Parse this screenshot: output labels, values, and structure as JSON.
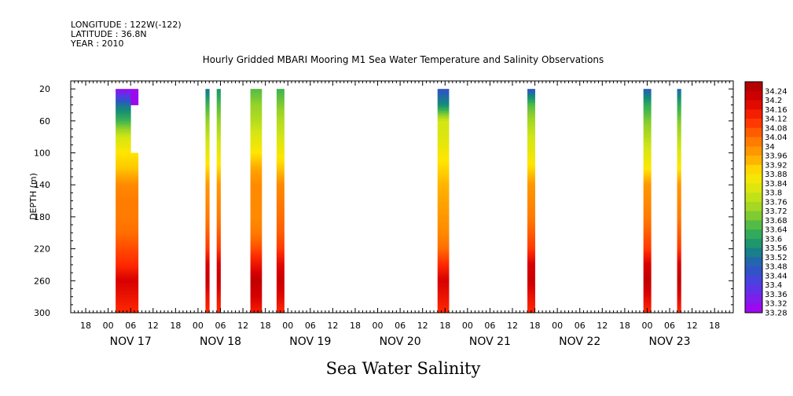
{
  "header": {
    "longitude": "LONGITUDE : 122W(-122)",
    "latitude": "LATITUDE : 36.8N",
    "year": "YEAR : 2010"
  },
  "chart_data": {
    "type": "heatmap",
    "title": "Hourly Gridded MBARI Mooring M1 Sea Water Temperature and Salinity Observations",
    "footer": "Sea Water Salinity",
    "ylabel": "DEPTH (m)",
    "xlabel": "",
    "y_reversed": true,
    "ylim": [
      300,
      10
    ],
    "y_ticks": [
      20,
      60,
      100,
      140,
      180,
      220,
      260,
      300
    ],
    "x_hour_start": -10,
    "x_hour_end": 167,
    "x_hour_labels": [
      "00",
      "06",
      "12",
      "18"
    ],
    "x_day_labels": [
      "NOV 17",
      "NOV 18",
      "NOV 19",
      "NOV 20",
      "NOV 21",
      "NOV 22",
      "NOV 23"
    ],
    "colorbar": {
      "levels": [
        "34.24",
        "34.2",
        "34.16",
        "34.12",
        "34.08",
        "34.04",
        "34",
        "33.96",
        "33.92",
        "33.88",
        "33.84",
        "33.8",
        "33.76",
        "33.72",
        "33.68",
        "33.64",
        "33.6",
        "33.56",
        "33.52",
        "33.48",
        "33.44",
        "33.4",
        "33.36",
        "33.32",
        "33.28"
      ],
      "min": 33.28,
      "max": 34.28,
      "step": 0.04
    },
    "profile_depths": [
      20,
      40,
      60,
      80,
      100,
      120,
      140,
      160,
      180,
      200,
      220,
      240,
      260,
      280,
      300
    ],
    "columns": [
      {
        "hour_start": 2,
        "hour_end": 4,
        "salinity": [
          33.3,
          33.52,
          33.64,
          33.8,
          33.88,
          33.92,
          34.0,
          34.02,
          34.02,
          34.04,
          34.08,
          34.12,
          34.2,
          34.16,
          34.12
        ]
      },
      {
        "hour_start": 4,
        "hour_end": 6,
        "salinity": [
          33.3,
          33.52,
          33.64,
          33.8,
          33.88,
          33.92,
          34.0,
          34.02,
          34.02,
          34.04,
          34.08,
          34.12,
          34.2,
          34.16,
          34.12
        ]
      },
      {
        "hour_start": 6,
        "hour_end": 8,
        "salinity": [
          33.3,
          null,
          null,
          null,
          33.88,
          33.92,
          34.0,
          34.02,
          34.02,
          34.04,
          34.08,
          34.12,
          34.2,
          34.16,
          34.12
        ]
      },
      {
        "hour_start": 26,
        "hour_end": 27,
        "salinity": [
          33.52,
          33.64,
          33.72,
          33.78,
          33.84,
          33.9,
          33.98,
          34.0,
          34.02,
          34.06,
          34.1,
          34.2,
          34.22,
          34.16,
          34.12
        ]
      },
      {
        "hour_start": 29,
        "hour_end": 30,
        "salinity": [
          33.58,
          33.66,
          33.72,
          33.78,
          33.84,
          33.9,
          33.98,
          34.0,
          34.02,
          34.06,
          34.1,
          34.2,
          34.22,
          34.16,
          34.12
        ]
      },
      {
        "hour_start": 38,
        "hour_end": 41,
        "salinity": [
          33.66,
          33.72,
          33.76,
          33.82,
          33.88,
          33.96,
          34.0,
          34.0,
          34.0,
          34.02,
          34.08,
          34.16,
          34.24,
          34.2,
          34.14
        ]
      },
      {
        "hour_start": 45,
        "hour_end": 47,
        "salinity": [
          33.64,
          33.7,
          33.76,
          33.8,
          33.86,
          33.92,
          34.0,
          34.02,
          34.04,
          34.06,
          34.1,
          34.18,
          34.22,
          34.18,
          34.12
        ]
      },
      {
        "hour_start": 88,
        "hour_end": 91,
        "salinity": [
          33.46,
          33.56,
          33.8,
          33.82,
          33.86,
          33.9,
          33.94,
          33.96,
          33.98,
          34.0,
          34.04,
          34.12,
          34.2,
          34.16,
          34.12
        ]
      },
      {
        "hour_start": 112,
        "hour_end": 114,
        "salinity": [
          33.46,
          33.66,
          33.74,
          33.8,
          33.84,
          33.9,
          33.98,
          34.0,
          34.02,
          34.06,
          34.1,
          34.2,
          34.22,
          34.16,
          34.12
        ]
      },
      {
        "hour_start": 143,
        "hour_end": 145,
        "salinity": [
          33.48,
          33.62,
          33.7,
          33.76,
          33.82,
          33.88,
          33.98,
          34.0,
          34.02,
          34.06,
          34.1,
          34.2,
          34.24,
          34.18,
          34.12
        ]
      },
      {
        "hour_start": 152,
        "hour_end": 153,
        "salinity": [
          33.5,
          33.62,
          33.7,
          33.76,
          33.82,
          33.88,
          33.98,
          34.0,
          34.02,
          34.06,
          34.1,
          34.2,
          34.24,
          34.18,
          34.12
        ]
      }
    ]
  }
}
